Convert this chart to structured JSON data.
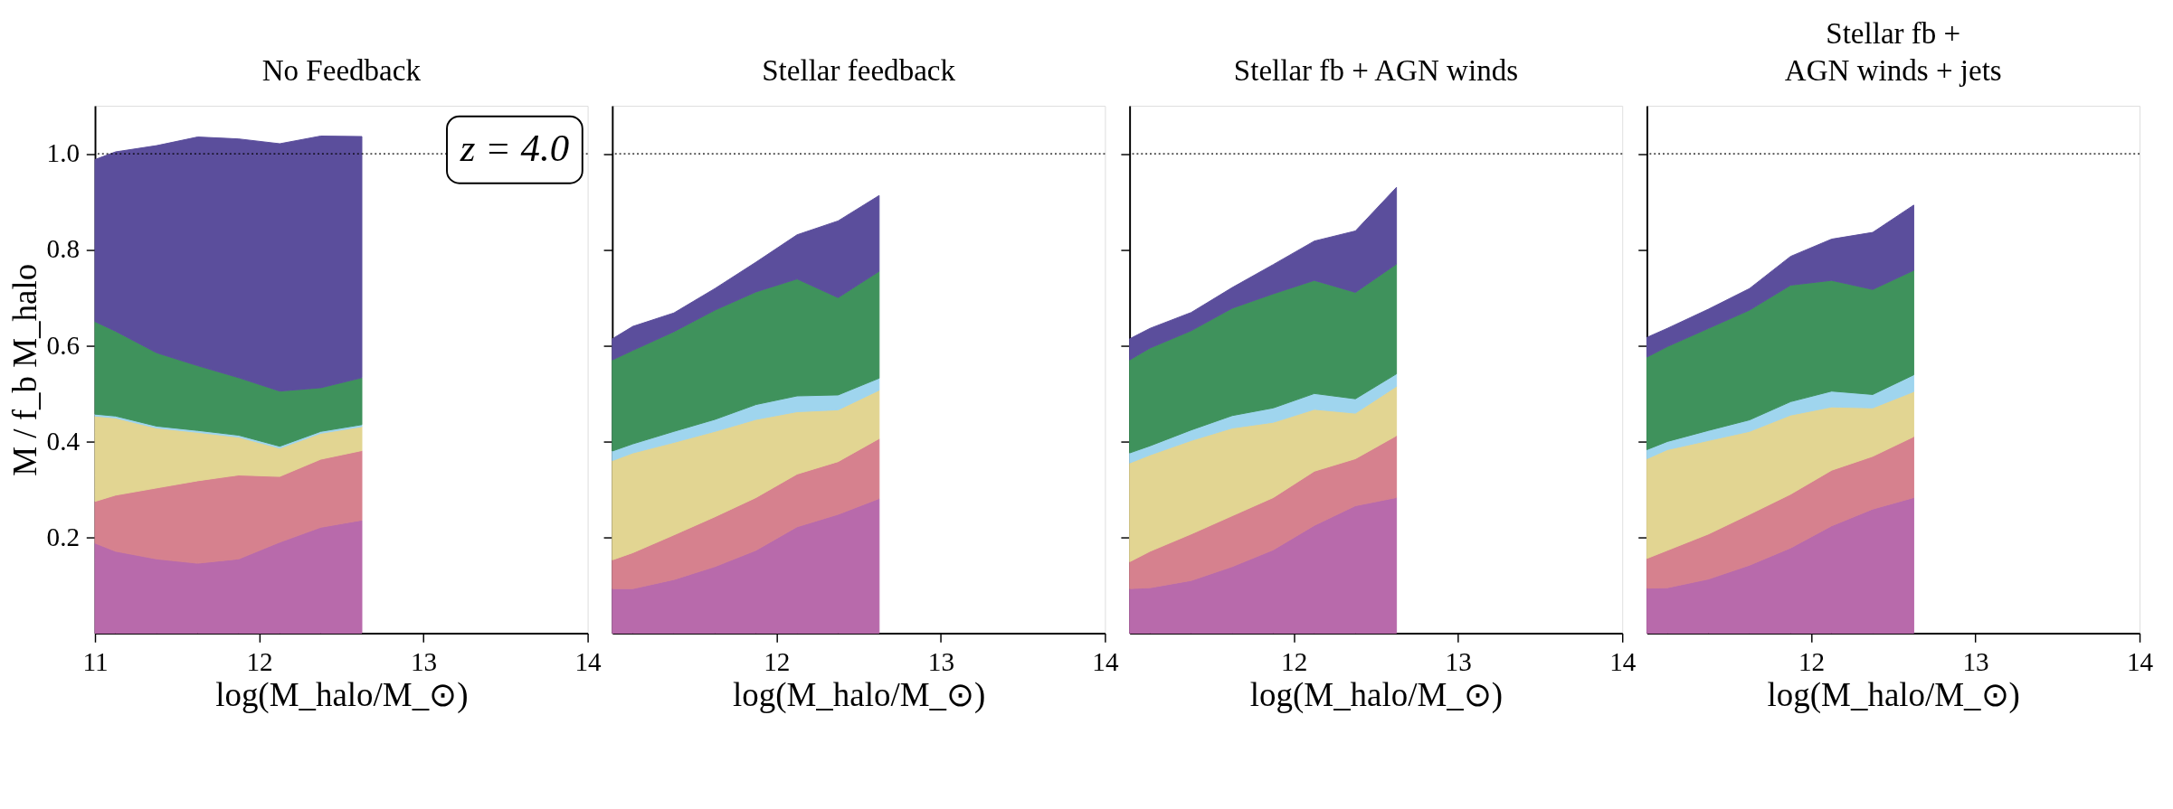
{
  "chart_data": [
    {
      "type": "area",
      "stacked": true,
      "title": "No Feedback",
      "xlabel": "log(M_halo/M_⊙)",
      "ylabel": "M / f_b M_halo",
      "x": [
        11.0,
        11.125,
        11.375,
        11.625,
        11.875,
        12.125,
        12.375,
        12.625
      ],
      "xlim": [
        11,
        14
      ],
      "xticks": [
        11,
        12,
        13,
        14
      ],
      "ylim": [
        0,
        1.1
      ],
      "yticks": [
        0.2,
        0.4,
        0.6,
        0.8,
        {
          "value": 1,
          "label": "1.0"
        }
      ],
      "series": [
        {
          "color": "#b86aab",
          "values": [
            0.188,
            0.171,
            0.155,
            0.146,
            0.155,
            0.19,
            0.221,
            0.236
          ]
        },
        {
          "color": "#d6818e",
          "values": [
            0.087,
            0.117,
            0.148,
            0.172,
            0.175,
            0.137,
            0.142,
            0.145
          ]
        },
        {
          "color": "#e2d592",
          "values": [
            0.178,
            0.161,
            0.125,
            0.101,
            0.079,
            0.059,
            0.054,
            0.05
          ]
        },
        {
          "color": "#9fd5ee",
          "values": [
            0.004,
            0.004,
            0.004,
            0.004,
            0.004,
            0.004,
            0.004,
            0.004
          ]
        },
        {
          "color": "#3f925c",
          "values": [
            0.193,
            0.177,
            0.153,
            0.135,
            0.12,
            0.115,
            0.091,
            0.098
          ]
        },
        {
          "color": "#5b4e9c",
          "values": [
            0.338,
            0.374,
            0.432,
            0.477,
            0.498,
            0.516,
            0.525,
            0.503
          ]
        }
      ],
      "ref_lines": [
        {
          "axis": "y",
          "value": 1.0,
          "color": "#000000",
          "line_style": "dotted"
        }
      ],
      "annotations": [
        "z = 4.0"
      ]
    },
    {
      "type": "area",
      "stacked": true,
      "title": "Stellar feedback",
      "xlabel": "log(M_halo/M_⊙)",
      "x": [
        11.0,
        11.125,
        11.375,
        11.625,
        11.875,
        12.125,
        12.375,
        12.625
      ],
      "xlim": [
        11,
        14
      ],
      "xticks": [
        12,
        13,
        14
      ],
      "ylim": [
        0,
        1.1
      ],
      "yticks": [
        0.2,
        0.4,
        0.6,
        0.8,
        1.0
      ],
      "tick_labels": "x",
      "series": [
        {
          "color": "#b86aab",
          "values": [
            0.093,
            0.093,
            0.112,
            0.139,
            0.173,
            0.222,
            0.248,
            0.281
          ]
        },
        {
          "color": "#d6818e",
          "values": [
            0.06,
            0.075,
            0.093,
            0.104,
            0.11,
            0.11,
            0.11,
            0.125
          ]
        },
        {
          "color": "#e2d592",
          "values": [
            0.207,
            0.208,
            0.193,
            0.178,
            0.163,
            0.13,
            0.108,
            0.101
          ]
        },
        {
          "color": "#9fd5ee",
          "values": [
            0.02,
            0.019,
            0.023,
            0.025,
            0.031,
            0.033,
            0.031,
            0.025
          ]
        },
        {
          "color": "#3f925c",
          "values": [
            0.19,
            0.195,
            0.208,
            0.228,
            0.235,
            0.244,
            0.203,
            0.223
          ]
        },
        {
          "color": "#5b4e9c",
          "values": [
            0.044,
            0.05,
            0.039,
            0.045,
            0.062,
            0.092,
            0.16,
            0.158
          ]
        }
      ],
      "ref_lines": [
        {
          "axis": "y",
          "value": 1.0,
          "color": "#000000",
          "line_style": "dotted"
        }
      ]
    },
    {
      "type": "area",
      "stacked": true,
      "title": "Stellar fb + AGN winds",
      "xlabel": "log(M_halo/M_⊙)",
      "x": [
        11.0,
        11.125,
        11.375,
        11.625,
        11.875,
        12.125,
        12.375,
        12.625
      ],
      "xlim": [
        11,
        14
      ],
      "xticks": [
        12,
        13,
        14
      ],
      "ylim": [
        0,
        1.1
      ],
      "yticks": [
        0.2,
        0.4,
        0.6,
        0.8,
        1.0
      ],
      "tick_labels": "x",
      "series": [
        {
          "color": "#b86aab",
          "values": [
            0.093,
            0.095,
            0.11,
            0.139,
            0.174,
            0.225,
            0.266,
            0.283
          ]
        },
        {
          "color": "#d6818e",
          "values": [
            0.056,
            0.076,
            0.097,
            0.106,
            0.109,
            0.113,
            0.098,
            0.129
          ]
        },
        {
          "color": "#e2d592",
          "values": [
            0.206,
            0.201,
            0.195,
            0.183,
            0.157,
            0.129,
            0.095,
            0.103
          ]
        },
        {
          "color": "#9fd5ee",
          "values": [
            0.021,
            0.019,
            0.022,
            0.026,
            0.03,
            0.033,
            0.03,
            0.026
          ]
        },
        {
          "color": "#3f925c",
          "values": [
            0.194,
            0.204,
            0.207,
            0.224,
            0.238,
            0.236,
            0.222,
            0.229
          ]
        },
        {
          "color": "#5b4e9c",
          "values": [
            0.044,
            0.041,
            0.038,
            0.043,
            0.061,
            0.082,
            0.128,
            0.16
          ]
        }
      ],
      "ref_lines": [
        {
          "axis": "y",
          "value": 1.0,
          "color": "#000000",
          "line_style": "dotted"
        }
      ]
    },
    {
      "type": "area",
      "stacked": true,
      "title": [
        "Stellar fb +",
        "AGN winds + jets"
      ],
      "xlabel": "log(M_halo/M_⊙)",
      "x": [
        11.0,
        11.125,
        11.375,
        11.625,
        11.875,
        12.125,
        12.375,
        12.625
      ],
      "xlim": [
        11,
        14
      ],
      "xticks": [
        12,
        13,
        14
      ],
      "ylim": [
        0,
        1.1
      ],
      "yticks": [
        0.2,
        0.4,
        0.6,
        0.8,
        1.0
      ],
      "tick_labels": "x",
      "series": [
        {
          "color": "#b86aab",
          "values": [
            0.094,
            0.095,
            0.113,
            0.142,
            0.178,
            0.224,
            0.259,
            0.283
          ]
        },
        {
          "color": "#d6818e",
          "values": [
            0.062,
            0.078,
            0.094,
            0.106,
            0.112,
            0.116,
            0.11,
            0.127
          ]
        },
        {
          "color": "#e2d592",
          "values": [
            0.208,
            0.21,
            0.195,
            0.173,
            0.165,
            0.132,
            0.101,
            0.094
          ]
        },
        {
          "color": "#9fd5ee",
          "values": [
            0.019,
            0.017,
            0.021,
            0.024,
            0.028,
            0.033,
            0.028,
            0.035
          ]
        },
        {
          "color": "#3f925c",
          "values": [
            0.193,
            0.198,
            0.213,
            0.229,
            0.243,
            0.231,
            0.219,
            0.218
          ]
        },
        {
          "color": "#5b4e9c",
          "values": [
            0.041,
            0.038,
            0.04,
            0.045,
            0.06,
            0.086,
            0.119,
            0.136
          ]
        }
      ],
      "ref_lines": [
        {
          "axis": "y",
          "value": 1.0,
          "color": "#000000",
          "line_style": "dotted"
        }
      ]
    }
  ]
}
